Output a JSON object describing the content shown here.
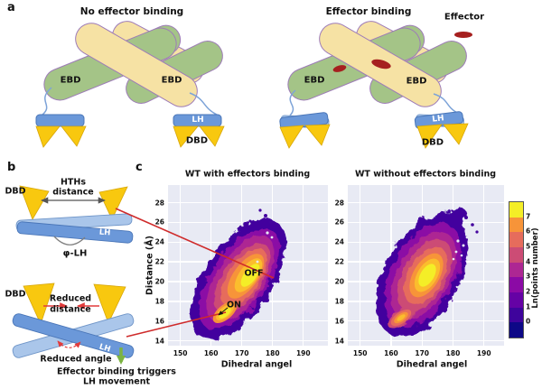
{
  "panel_a": {
    "label": "a",
    "no_effector_title": "No effector binding",
    "effector_title": "Effector binding",
    "effector_legend": "Effector",
    "ebd": "EBD",
    "lh": "LH",
    "dbd": "DBD",
    "colors": {
      "ebd_green": "#a4c487",
      "ebd_tan": "#f6e2a4",
      "outline_purple": "#9d7bb8",
      "lh_blue": "#6b98d9",
      "lh_light_blue": "#aac6ea",
      "dbd_gold": "#f8c80f",
      "effector_red": "#a6201f"
    }
  },
  "panel_b": {
    "label": "b",
    "dbd": "DBD",
    "lh": "LH",
    "hths_line1": "HTHs",
    "hths_line2": "distance",
    "phi_lh": "φ-LH",
    "reduced_line1": "Reduced",
    "reduced_line2": "distance",
    "reduced_angle": "Reduced angle",
    "caption_line1": "Effector binding triggers",
    "caption_line2": "LH movement"
  },
  "panel_c": {
    "label": "c",
    "colorbar": {
      "label": "Ln(points number)",
      "ticks": [
        0,
        1,
        2,
        3,
        4,
        5,
        6,
        7
      ],
      "colors": [
        "#0d0887",
        "#3e049c",
        "#6502a5",
        "#8b0aa5",
        "#ad2793",
        "#cc4c75",
        "#e66c5c",
        "#f79439",
        "#f4ee27"
      ]
    }
  },
  "chart_data": [
    {
      "type": "heatmap",
      "title": "WT with effectors binding",
      "xlabel": "Dihedral angel",
      "ylabel": "Distance (Å)",
      "xlim": [
        146,
        198
      ],
      "ylim": [
        13.5,
        29.8
      ],
      "xticks": [
        150,
        160,
        170,
        180,
        190
      ],
      "yticks": [
        14,
        16,
        18,
        20,
        22,
        24,
        26,
        28
      ],
      "grid": true,
      "legend": "colorbar right: Ln(points number), 0-7",
      "annotations": [
        {
          "text": "OFF",
          "x": 172.8,
          "y": 20.8
        },
        {
          "text": "ON",
          "x": 166.3,
          "y": 17.6
        }
      ],
      "peaks": [
        {
          "name": "OFF state",
          "x": 172.5,
          "y": 20.5,
          "density_ln": 7.5
        },
        {
          "name": "ON state",
          "x": 164.8,
          "y": 17.0,
          "density_ln": 7.0
        }
      ],
      "distribution": "elongated diagonal density ridge from (158,15.5) to (182,25.5), two maxima (ON, OFF)"
    },
    {
      "type": "heatmap",
      "title": "WT without effectors binding",
      "xlabel": "Dihedral angel",
      "ylabel": "Distance (Å)",
      "xlim": [
        146,
        196.5
      ],
      "ylim": [
        13.5,
        29.8
      ],
      "xticks": [
        150,
        160,
        170,
        180,
        190
      ],
      "yticks": [
        14,
        16,
        18,
        20,
        22,
        24,
        26,
        28
      ],
      "grid": true,
      "legend": "colorbar right: Ln(points number), 0-7",
      "annotations": [],
      "peaks": [
        {
          "name": "main basin",
          "x": 171.0,
          "y": 20.3,
          "density_ln": 7.5
        },
        {
          "name": "minor basin",
          "x": 163.5,
          "y": 16.4,
          "density_ln": 6.5
        }
      ],
      "distribution": "single broad diagonal basin centered near (171,20.3) with small shoulder near (163.5,16.4)"
    }
  ]
}
